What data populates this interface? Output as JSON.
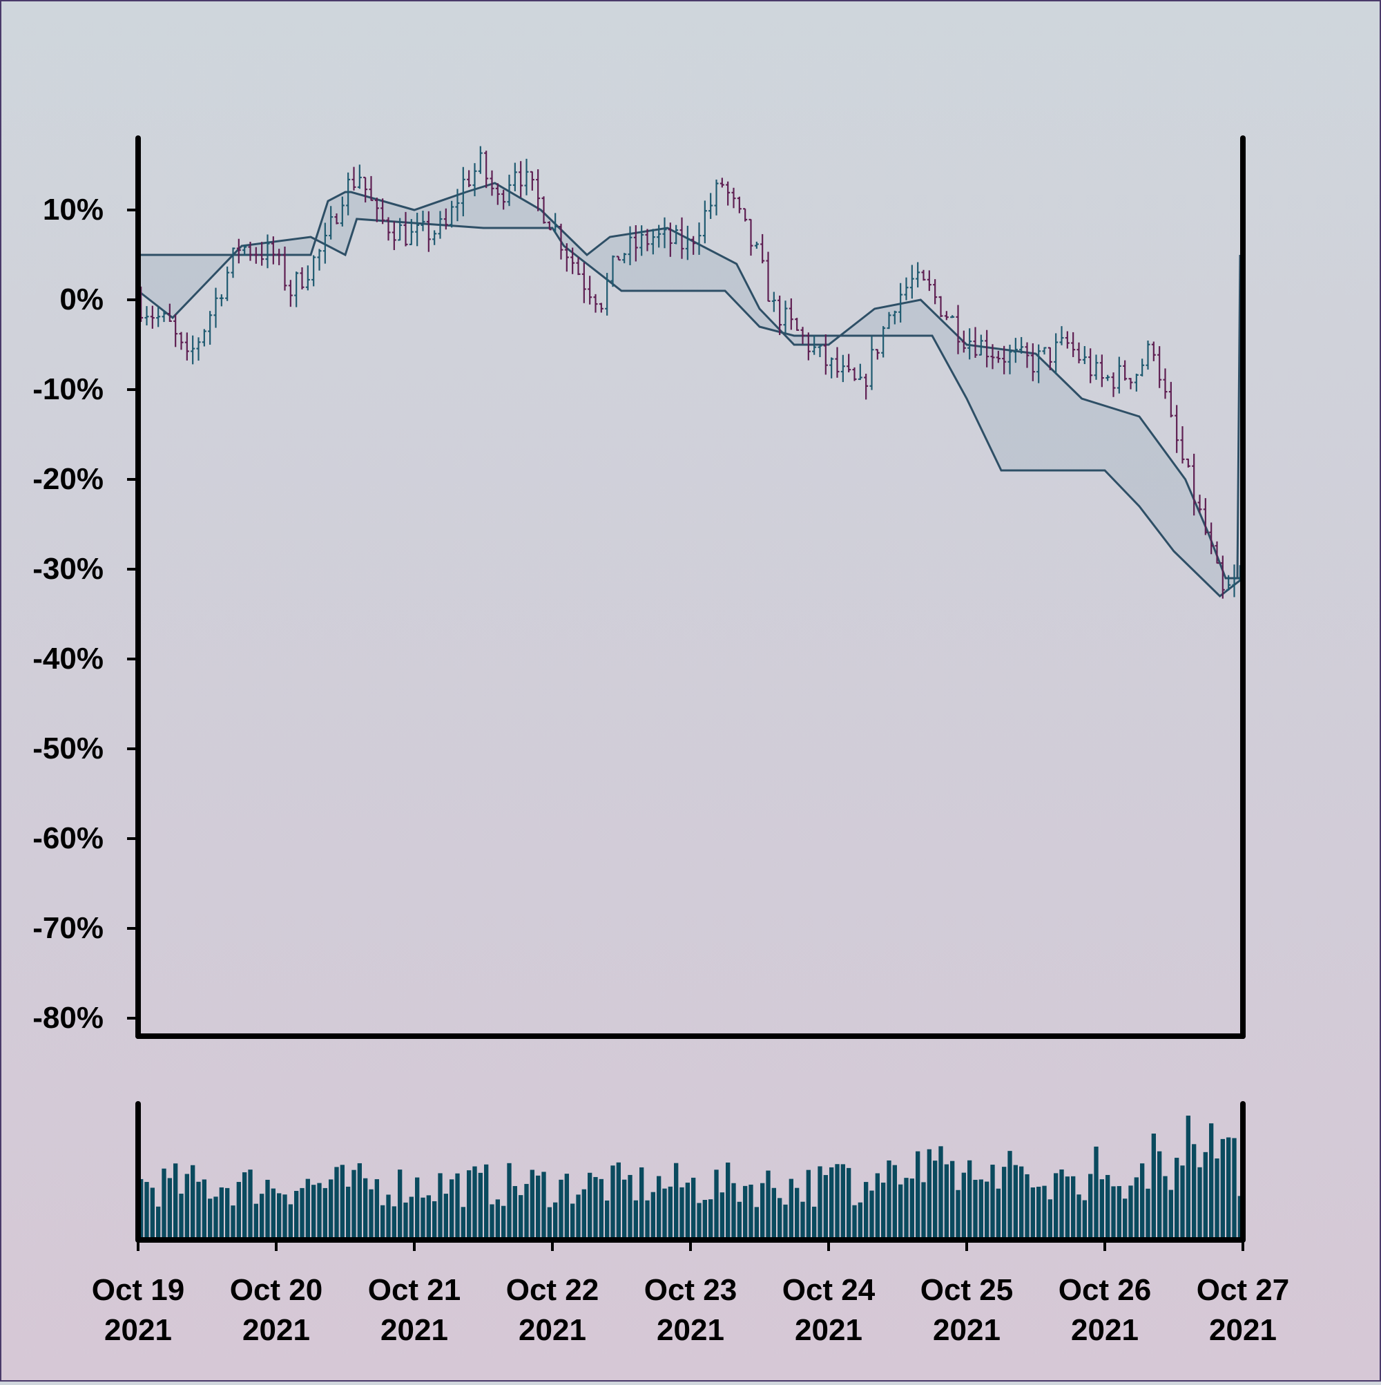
{
  "chart_data": {
    "type": "ohlc",
    "y_axis": {
      "unit": "%",
      "ylim": [
        -82,
        18
      ],
      "ticks": [
        10,
        0,
        -10,
        -20,
        -30,
        -40,
        -50,
        -60,
        -70,
        -80
      ],
      "tick_labels": [
        "10%",
        "0%",
        "-10%",
        "-20%",
        "-30%",
        "-40%",
        "-50%",
        "-60%",
        "-70%",
        "-80%"
      ]
    },
    "x_axis": {
      "range": [
        "2021-10-19",
        "2021-10-27"
      ],
      "ticks": [
        {
          "date": "2021-10-19",
          "line1": "Oct 19",
          "line2": "2021"
        },
        {
          "date": "2021-10-20",
          "line1": "Oct 20",
          "line2": "2021"
        },
        {
          "date": "2021-10-21",
          "line1": "Oct 21",
          "line2": "2021"
        },
        {
          "date": "2021-10-22",
          "line1": "Oct 22",
          "line2": "2021"
        },
        {
          "date": "2021-10-23",
          "line1": "Oct 23",
          "line2": "2021"
        },
        {
          "date": "2021-10-24",
          "line1": "Oct 24",
          "line2": "2021"
        },
        {
          "date": "2021-10-25",
          "line1": "Oct 25",
          "line2": "2021"
        },
        {
          "date": "2021-10-26",
          "line1": "Oct 26",
          "line2": "2021"
        },
        {
          "date": "2021-10-27",
          "line1": "Oct 27",
          "line2": "2021"
        }
      ]
    },
    "price_close_pct": [
      {
        "date": "2021-10-19 00:00",
        "close": 0
      },
      {
        "date": "2021-10-19 06:00",
        "close": -3
      },
      {
        "date": "2021-10-19 09:00",
        "close": -7
      },
      {
        "date": "2021-10-19 12:00",
        "close": -3
      },
      {
        "date": "2021-10-19 18:00",
        "close": 6
      },
      {
        "date": "2021-10-20 00:00",
        "close": 5
      },
      {
        "date": "2021-10-20 03:00",
        "close": 1
      },
      {
        "date": "2021-10-20 09:00",
        "close": 6
      },
      {
        "date": "2021-10-20 12:00",
        "close": 12
      },
      {
        "date": "2021-10-20 15:00",
        "close": 14
      },
      {
        "date": "2021-10-20 18:00",
        "close": 9
      },
      {
        "date": "2021-10-21 00:00",
        "close": 7
      },
      {
        "date": "2021-10-21 06:00",
        "close": 8
      },
      {
        "date": "2021-10-21 09:00",
        "close": 13
      },
      {
        "date": "2021-10-21 12:00",
        "close": 15
      },
      {
        "date": "2021-10-21 15:00",
        "close": 11
      },
      {
        "date": "2021-10-21 18:00",
        "close": 15
      },
      {
        "date": "2021-10-22 00:00",
        "close": 9
      },
      {
        "date": "2021-10-22 06:00",
        "close": 2
      },
      {
        "date": "2021-10-22 09:00",
        "close": 0
      },
      {
        "date": "2021-10-22 12:00",
        "close": 5
      },
      {
        "date": "2021-10-22 18:00",
        "close": 7
      },
      {
        "date": "2021-10-23 00:00",
        "close": 6
      },
      {
        "date": "2021-10-23 06:00",
        "close": 13
      },
      {
        "date": "2021-10-23 09:00",
        "close": 9
      },
      {
        "date": "2021-10-23 12:00",
        "close": 5
      },
      {
        "date": "2021-10-23 15:00",
        "close": -1
      },
      {
        "date": "2021-10-23 18:00",
        "close": -3
      },
      {
        "date": "2021-10-24 00:00",
        "close": -7
      },
      {
        "date": "2021-10-24 06:00",
        "close": -10
      },
      {
        "date": "2021-10-24 12:00",
        "close": 0
      },
      {
        "date": "2021-10-24 15:00",
        "close": 2
      },
      {
        "date": "2021-10-24 18:00",
        "close": 1
      },
      {
        "date": "2021-10-25 00:00",
        "close": -4
      },
      {
        "date": "2021-10-25 06:00",
        "close": -6
      },
      {
        "date": "2021-10-25 12:00",
        "close": -7
      },
      {
        "date": "2021-10-25 18:00",
        "close": -5
      },
      {
        "date": "2021-10-26 00:00",
        "close": -9
      },
      {
        "date": "2021-10-26 06:00",
        "close": -8
      },
      {
        "date": "2021-10-26 09:00",
        "close": -5
      },
      {
        "date": "2021-10-26 12:00",
        "close": -14
      },
      {
        "date": "2021-10-26 15:00",
        "close": -20
      },
      {
        "date": "2021-10-26 18:00",
        "close": -26
      },
      {
        "date": "2021-10-26 21:00",
        "close": -33
      },
      {
        "date": "2021-10-27 00:00",
        "close": -31
      },
      {
        "date": "2021-10-27 00:00",
        "close": 5
      }
    ],
    "upper_band_pct": [
      {
        "date": "2021-10-19 00:00",
        "value": 5
      },
      {
        "date": "2021-10-20 06:00",
        "value": 5
      },
      {
        "date": "2021-10-20 09:00",
        "value": 11
      },
      {
        "date": "2021-10-20 12:00",
        "value": 12
      },
      {
        "date": "2021-10-20 13:00",
        "value": 12
      },
      {
        "date": "2021-10-21 00:00",
        "value": 10
      },
      {
        "date": "2021-10-21 09:00",
        "value": 12
      },
      {
        "date": "2021-10-21 14:00",
        "value": 13
      },
      {
        "date": "2021-10-21 22:00",
        "value": 10
      },
      {
        "date": "2021-10-22 06:00",
        "value": 5
      },
      {
        "date": "2021-10-22 10:00",
        "value": 7
      },
      {
        "date": "2021-10-22 20:00",
        "value": 8
      },
      {
        "date": "2021-10-23 08:00",
        "value": 4
      },
      {
        "date": "2021-10-23 12:00",
        "value": -1
      },
      {
        "date": "2021-10-23 18:00",
        "value": -5
      },
      {
        "date": "2021-10-24 00:00",
        "value": -5
      },
      {
        "date": "2021-10-24 08:00",
        "value": -1
      },
      {
        "date": "2021-10-24 16:00",
        "value": 0
      },
      {
        "date": "2021-10-25 00:00",
        "value": -5
      },
      {
        "date": "2021-10-25 12:00",
        "value": -6
      },
      {
        "date": "2021-10-25 20:00",
        "value": -11
      },
      {
        "date": "2021-10-26 06:00",
        "value": -13
      },
      {
        "date": "2021-10-26 14:00",
        "value": -20
      },
      {
        "date": "2021-10-26 18:00",
        "value": -26
      },
      {
        "date": "2021-10-26 21:00",
        "value": -31
      },
      {
        "date": "2021-10-27 00:00",
        "value": -31
      }
    ],
    "lower_band_pct": [
      {
        "date": "2021-10-19 00:00",
        "value": 1
      },
      {
        "date": "2021-10-19 06:00",
        "value": -2
      },
      {
        "date": "2021-10-19 12:00",
        "value": 2
      },
      {
        "date": "2021-10-19 18:00",
        "value": 6
      },
      {
        "date": "2021-10-20 06:00",
        "value": 7
      },
      {
        "date": "2021-10-20 12:00",
        "value": 5
      },
      {
        "date": "2021-10-20 14:00",
        "value": 9
      },
      {
        "date": "2021-10-21 12:00",
        "value": 8
      },
      {
        "date": "2021-10-22 00:00",
        "value": 8
      },
      {
        "date": "2021-10-22 02:00",
        "value": 6
      },
      {
        "date": "2021-10-22 06:00",
        "value": 4
      },
      {
        "date": "2021-10-22 12:00",
        "value": 1
      },
      {
        "date": "2021-10-23 06:00",
        "value": 1
      },
      {
        "date": "2021-10-23 12:00",
        "value": -3
      },
      {
        "date": "2021-10-23 18:00",
        "value": -4
      },
      {
        "date": "2021-10-24 06:00",
        "value": -4
      },
      {
        "date": "2021-10-24 18:00",
        "value": -4
      },
      {
        "date": "2021-10-25 00:00",
        "value": -11
      },
      {
        "date": "2021-10-25 06:00",
        "value": -19
      },
      {
        "date": "2021-10-25 16:00",
        "value": -19
      },
      {
        "date": "2021-10-26 00:00",
        "value": -19
      },
      {
        "date": "2021-10-26 06:00",
        "value": -23
      },
      {
        "date": "2021-10-26 12:00",
        "value": -28
      },
      {
        "date": "2021-10-26 20:00",
        "value": -33
      },
      {
        "date": "2021-10-27 00:00",
        "value": -31
      }
    ],
    "colors": {
      "up": "#1f5a70",
      "down": "#5e1f52",
      "band_line": "#2e4f66",
      "band_fill": "#aab8c6",
      "volume": "#0a4a5e",
      "axis": "#000000"
    }
  }
}
